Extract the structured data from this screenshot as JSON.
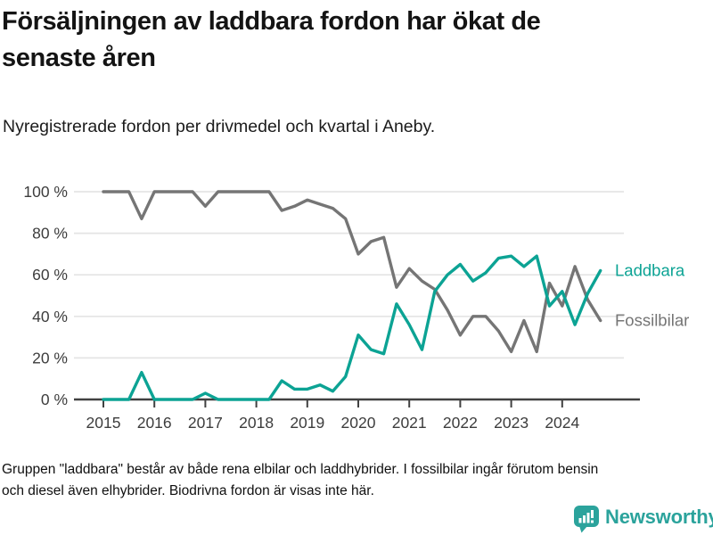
{
  "page": {
    "title_line1": "Försäljningen av laddbara fordon har ökat de",
    "title_line2": "senaste åren",
    "subtitle": "Nyregistrerade fordon per drivmedel och kvartal i Aneby.",
    "footer_line1": "Gruppen \"laddbara\" består av både rena elbilar och laddhybrider. I fossilbilar ingår förutom bensin",
    "footer_line2": "och diesel även elhybrider. Biodrivna fordon är visas inte här.",
    "brand": "Newsworthy"
  },
  "colors": {
    "laddbara_teal": "#0ca394",
    "fossil_gray": "#757575",
    "brand_teal": "#2ba39c",
    "grid": "#e4e4e4",
    "axis": "#414141",
    "tick_text": "#3d3d3d"
  },
  "chart_data": {
    "type": "line",
    "title": "Försäljningen av laddbara fordon har ökat de senaste åren",
    "subtitle": "Nyregistrerade fordon per drivmedel och kvartal i Aneby.",
    "x_unit": "quarter",
    "x_start": "2015 Q1",
    "x_end": "2024 Q4",
    "x_tick_labels": [
      "2015",
      "2016",
      "2017",
      "2018",
      "2019",
      "2020",
      "2021",
      "2022",
      "2023",
      "2024"
    ],
    "y_tick_values": [
      0,
      20,
      40,
      60,
      80,
      100
    ],
    "y_tick_labels": [
      "0 %",
      "20 %",
      "40 %",
      "60 %",
      "80 %",
      "100 %"
    ],
    "ylim": [
      0,
      100
    ],
    "grid": "horizontal",
    "legend_position": "line-end-labels-right",
    "series": [
      {
        "name": "Laddbara",
        "color": "#0ca394",
        "values": [
          0,
          0,
          0,
          13,
          0,
          0,
          0,
          0,
          3,
          0,
          0,
          0,
          0,
          0,
          9,
          5,
          5,
          7,
          4,
          11,
          31,
          24,
          22,
          46,
          36,
          24,
          52,
          60,
          65,
          57,
          61,
          68,
          69,
          64,
          69,
          45,
          52,
          36,
          51,
          62
        ]
      },
      {
        "name": "Fossilbilar",
        "color": "#757575",
        "values": [
          100,
          100,
          100,
          87,
          100,
          100,
          100,
          100,
          93,
          100,
          100,
          100,
          100,
          100,
          91,
          93,
          96,
          94,
          92,
          87,
          70,
          76,
          78,
          54,
          63,
          57,
          53,
          43,
          31,
          40,
          40,
          33,
          23,
          38,
          23,
          56,
          45,
          64,
          48,
          38
        ]
      }
    ]
  }
}
